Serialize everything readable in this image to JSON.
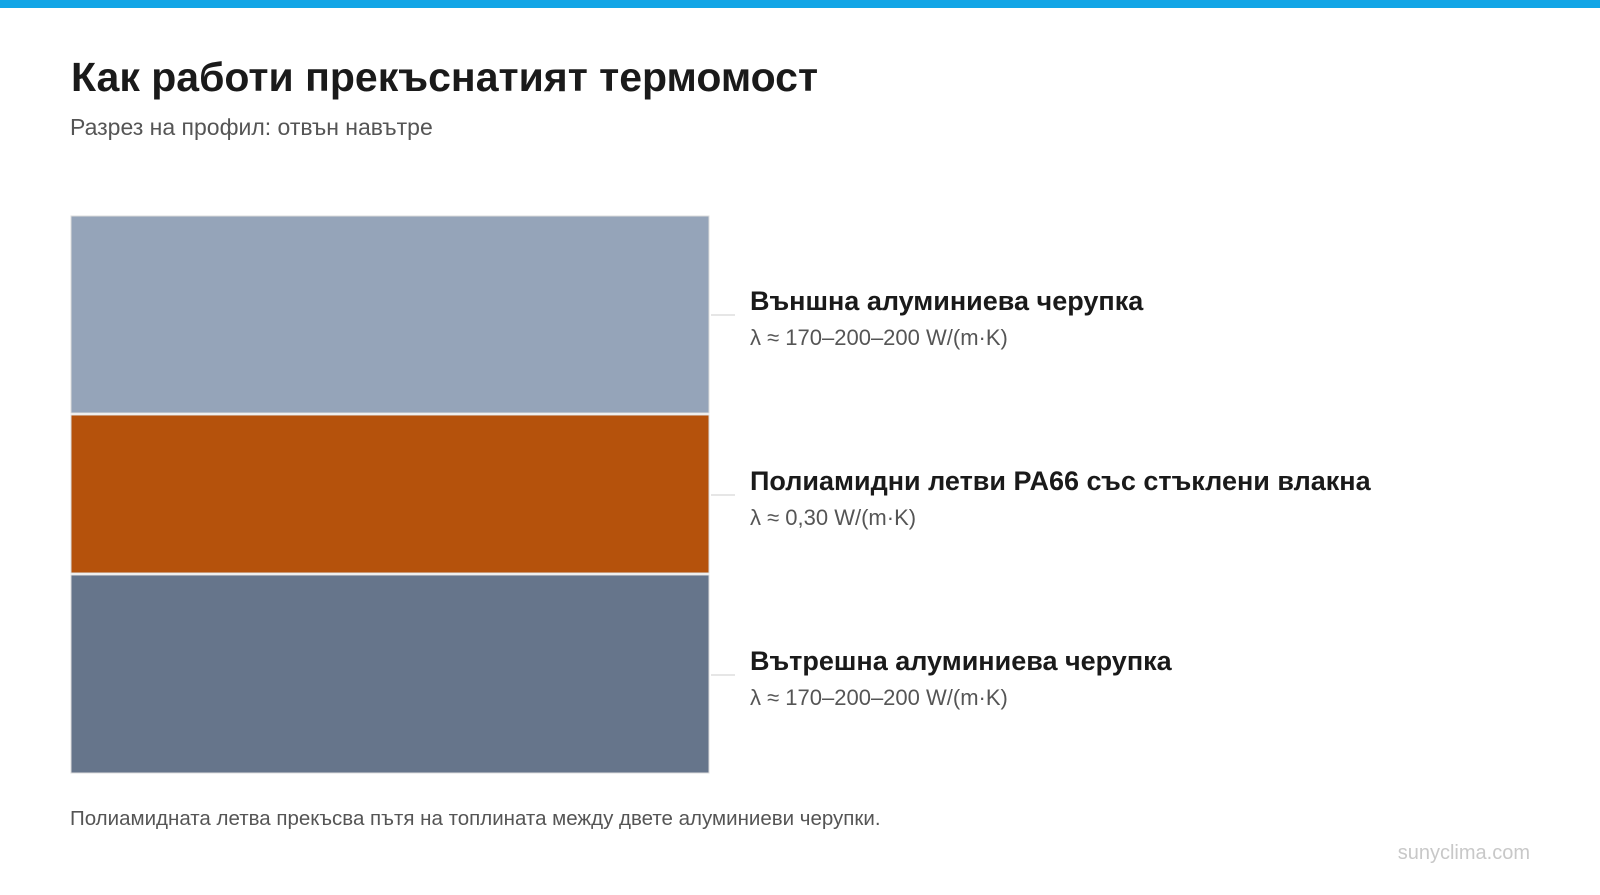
{
  "header": {
    "title": "Как работи прекъснатият термомост",
    "subtitle": "Разрез на профил: отвън навътре"
  },
  "layers": [
    {
      "label": "Външна алуминиева черупка",
      "detail": "λ ≈ 170–200–200 W/(m·K)"
    },
    {
      "label": "Полиамидни летви PA66 със стъклени влакна",
      "detail": "λ ≈ 0,30 W/(m·K)"
    },
    {
      "label": "Вътрешна алуминиева черупка",
      "detail": "λ ≈ 170–200–200 W/(m·K)"
    }
  ],
  "footnote": "Полиамидната летва прекъсва пътя на топлината между двете алуминиеви черупки.",
  "watermark": "sunyclima.com"
}
